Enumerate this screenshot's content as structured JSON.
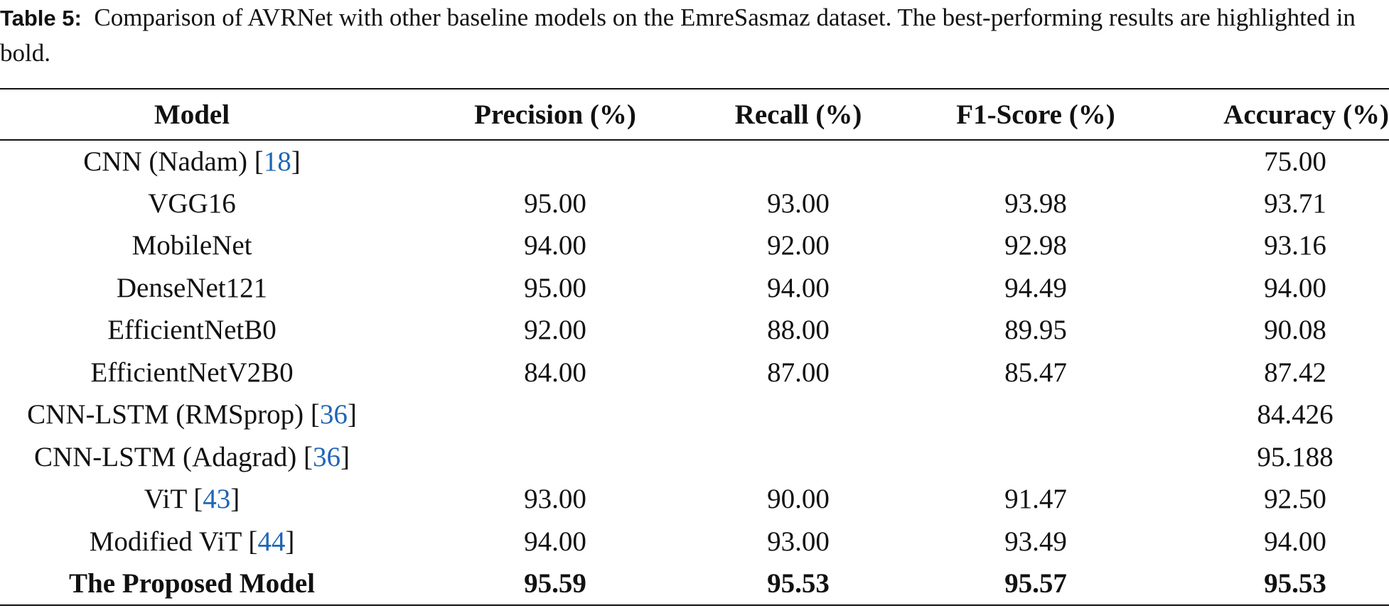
{
  "caption": {
    "label": "Table 5:",
    "text": "Comparison of AVRNet with other baseline models on the EmreSasmaz dataset. The best-performing results are highlighted in bold."
  },
  "table": {
    "headers": [
      "Model",
      "Precision (%)",
      "Recall (%)",
      "F1-Score (%)",
      "Accuracy (%)"
    ],
    "rows": [
      {
        "model": "CNN (Nadam)",
        "ref": [
          "[",
          "18",
          "]"
        ],
        "values": [
          null,
          null,
          null,
          "75.00"
        ]
      },
      {
        "model": "VGG16",
        "values": [
          "95.00",
          "93.00",
          "93.98",
          "93.71"
        ]
      },
      {
        "model": "MobileNet",
        "values": [
          "94.00",
          "92.00",
          "92.98",
          "93.16"
        ]
      },
      {
        "model": "DenseNet121",
        "values": [
          "95.00",
          "94.00",
          "94.49",
          "94.00"
        ]
      },
      {
        "model": "EfficientNetB0",
        "values": [
          "92.00",
          "88.00",
          "89.95",
          "90.08"
        ]
      },
      {
        "model": "EfficientNetV2B0",
        "values": [
          "84.00",
          "87.00",
          "85.47",
          "87.42"
        ]
      },
      {
        "model": "CNN-LSTM (RMSprop)",
        "ref": [
          "[",
          "36",
          "]"
        ],
        "values": [
          null,
          null,
          null,
          "84.426"
        ]
      },
      {
        "model": "CNN-LSTM (Adagrad)",
        "ref": [
          "[",
          "36",
          "]"
        ],
        "values": [
          null,
          null,
          null,
          "95.188"
        ]
      },
      {
        "model": "ViT",
        "ref": [
          "[",
          "43",
          "]"
        ],
        "values": [
          "93.00",
          "90.00",
          "91.47",
          "92.50"
        ]
      },
      {
        "model": "Modified ViT",
        "ref": [
          "[",
          "44",
          "]"
        ],
        "values": [
          "94.00",
          "93.00",
          "93.49",
          "94.00"
        ]
      },
      {
        "model": "The Proposed Model",
        "bold": true,
        "values": [
          "95.59",
          "95.53",
          "95.57",
          "95.53"
        ]
      }
    ]
  }
}
